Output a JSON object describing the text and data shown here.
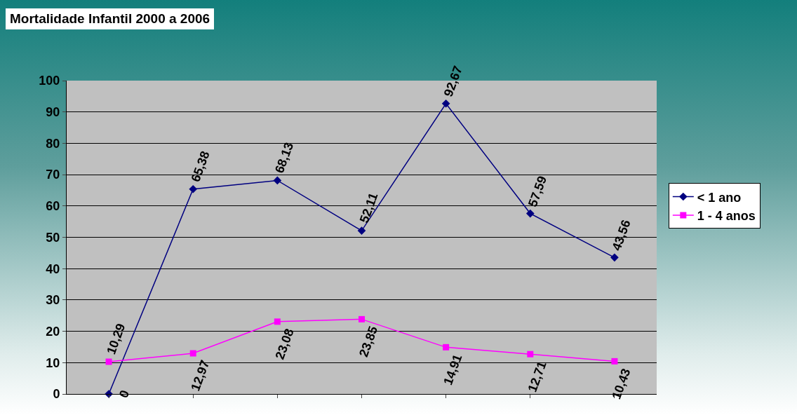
{
  "chart_data": {
    "type": "line",
    "title": "Mortalidade Infantil 2000 a 2006",
    "categories": [
      null,
      null,
      null,
      null,
      null,
      null,
      null
    ],
    "series": [
      {
        "name": "< 1 ano",
        "color": "#000080",
        "marker": "diamond",
        "values": [
          0,
          65.38,
          68.13,
          52.11,
          92.67,
          57.59,
          43.56
        ],
        "value_labels": [
          "0",
          "65,38",
          "68,13",
          "52,11",
          "92,67",
          "57,59",
          "43,56"
        ]
      },
      {
        "name": "1 - 4 anos",
        "color": "#ff00ff",
        "marker": "square",
        "values": [
          10.29,
          12.97,
          23.08,
          23.85,
          14.91,
          12.71,
          10.43
        ],
        "value_labels": [
          "10,29",
          "12,97",
          "23,08",
          "23,85",
          "14,91",
          "12,71",
          "10,43"
        ]
      }
    ],
    "ylim": [
      0,
      100
    ],
    "yticks": [
      0,
      10,
      20,
      30,
      40,
      50,
      60,
      70,
      80,
      90,
      100
    ],
    "grid": "y",
    "legend": "right"
  }
}
